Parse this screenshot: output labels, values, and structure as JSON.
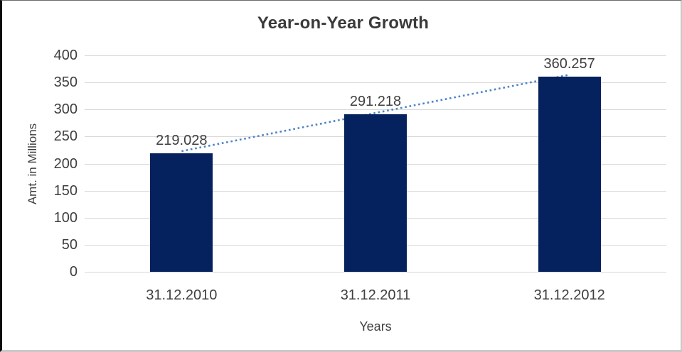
{
  "chart_data": {
    "type": "bar",
    "title": "Year-on-Year Growth",
    "categories": [
      "31.12.2010",
      "31.12.2011",
      "31.12.2012"
    ],
    "values": [
      219.028,
      291.218,
      360.257
    ],
    "bar_labels": [
      "219.028",
      "291.218",
      "360.257"
    ],
    "xlabel": "Years",
    "ylabel": "Amt. in Millions",
    "ylim": [
      0,
      400
    ],
    "yticks": [
      0,
      50,
      100,
      150,
      200,
      250,
      300,
      350,
      400
    ],
    "grid": true,
    "legend": false,
    "trendline": {
      "present": true,
      "style": "dotted",
      "through": "bar tops"
    },
    "colors": {
      "bar": "#05215e",
      "trendline": "#4c84c6",
      "gridline": "#d9d9d9",
      "text": "#3f3f3f"
    }
  }
}
